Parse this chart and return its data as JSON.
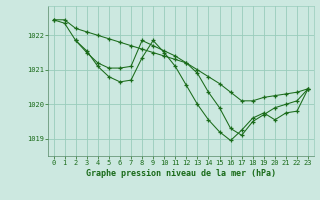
{
  "title": "Graphe pression niveau de la mer (hPa)",
  "bg_color": "#cce8e0",
  "grid_color": "#99ccbb",
  "line_color": "#1a6b1a",
  "xlim": [
    -0.5,
    23.5
  ],
  "ylim": [
    1018.5,
    1022.85
  ],
  "yticks": [
    1019,
    1020,
    1021,
    1022
  ],
  "xticks": [
    0,
    1,
    2,
    3,
    4,
    5,
    6,
    7,
    8,
    9,
    10,
    11,
    12,
    13,
    14,
    15,
    16,
    17,
    18,
    19,
    20,
    21,
    22,
    23
  ],
  "series": [
    {
      "x": [
        0,
        1,
        2,
        3,
        4,
        5,
        6,
        7,
        8,
        9,
        10,
        11,
        12,
        13,
        14,
        15,
        16,
        17,
        18,
        19,
        20,
        21,
        22,
        23
      ],
      "y": [
        1022.45,
        1022.45,
        1022.2,
        1022.1,
        1022.0,
        1021.9,
        1021.8,
        1021.7,
        1021.6,
        1021.5,
        1021.4,
        1021.3,
        1021.2,
        1021.0,
        1020.8,
        1020.6,
        1020.35,
        1020.1,
        1020.1,
        1020.2,
        1020.25,
        1020.3,
        1020.35,
        1020.45
      ]
    },
    {
      "x": [
        0,
        1,
        2,
        3,
        4,
        5,
        6,
        7,
        8,
        9,
        10,
        11,
        12,
        13,
        14,
        15,
        16,
        17,
        18,
        19,
        20,
        21,
        22,
        23
      ],
      "y": [
        1022.45,
        1022.35,
        1021.85,
        1021.5,
        1021.2,
        1021.05,
        1021.05,
        1021.1,
        1021.85,
        1021.7,
        1021.55,
        1021.4,
        1021.2,
        1020.9,
        1020.35,
        1019.9,
        1019.3,
        1019.1,
        1019.5,
        1019.7,
        1019.9,
        1020.0,
        1020.1,
        1020.45
      ]
    },
    {
      "x": [
        2,
        3,
        4,
        5,
        6,
        7,
        8,
        9,
        10,
        11,
        12,
        13,
        14,
        15,
        16,
        17,
        18,
        19,
        20,
        21,
        22,
        23
      ],
      "y": [
        1021.85,
        1021.55,
        1021.1,
        1020.8,
        1020.65,
        1020.7,
        1021.35,
        1021.85,
        1021.5,
        1021.1,
        1020.55,
        1020.0,
        1019.55,
        1019.2,
        1018.95,
        1019.25,
        1019.6,
        1019.75,
        1019.55,
        1019.75,
        1019.8,
        1020.45
      ]
    }
  ]
}
